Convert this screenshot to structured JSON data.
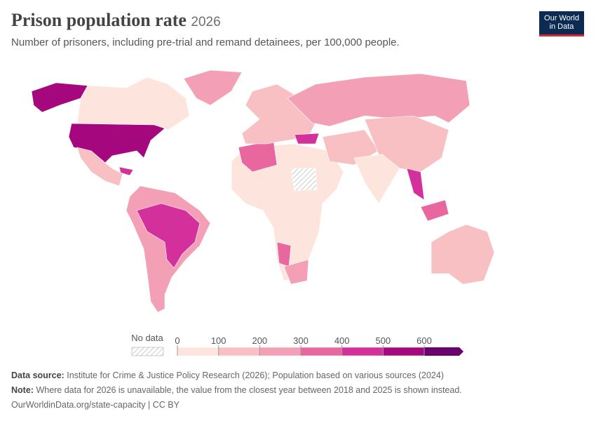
{
  "header": {
    "title": "Prison population rate",
    "year": "2026",
    "subtitle": "Number of prisoners, including pre-trial and remand detainees, per 100,000 people.",
    "logo": [
      "Our World",
      "in Data"
    ]
  },
  "legend": {
    "no_data": "No data",
    "ticks": [
      0,
      100,
      200,
      300,
      400,
      500,
      600
    ],
    "colors": [
      "#fde5dd",
      "#f8c0c2",
      "#f3a0b7",
      "#e8679f",
      "#d3309b",
      "#a5077f",
      "#6b006f"
    ]
  },
  "footer": {
    "source_label": "Data source:",
    "source": "Institute for Crime & Justice Policy Research (2026); Population based on various sources (2024)",
    "note_label": "Note:",
    "note": "Where data for 2026 is unavailable, the value from the closest year between 2018 and 2025 is shown instead.",
    "url": "OurWorldinData.org/state-capacity | CC BY"
  }
}
